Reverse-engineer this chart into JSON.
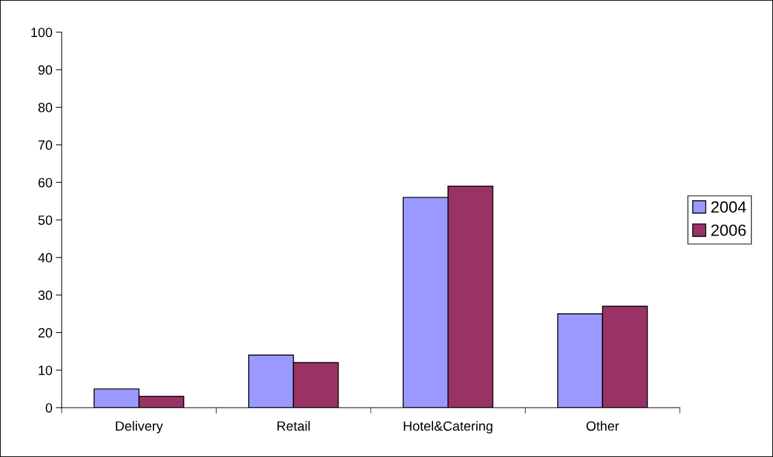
{
  "chart_data": {
    "type": "bar",
    "categories": [
      "Delivery",
      "Retail",
      "Hotel&Catering",
      "Other"
    ],
    "series": [
      {
        "name": "2004",
        "color": "#9999ff",
        "values": [
          5,
          14,
          56,
          25
        ]
      },
      {
        "name": "2006",
        "color": "#993366",
        "values": [
          3,
          12,
          59,
          27
        ]
      }
    ],
    "ylim": [
      0,
      100
    ],
    "yticks": [
      0,
      10,
      20,
      30,
      40,
      50,
      60,
      70,
      80,
      90,
      100
    ],
    "grid": false,
    "legend": "right"
  }
}
